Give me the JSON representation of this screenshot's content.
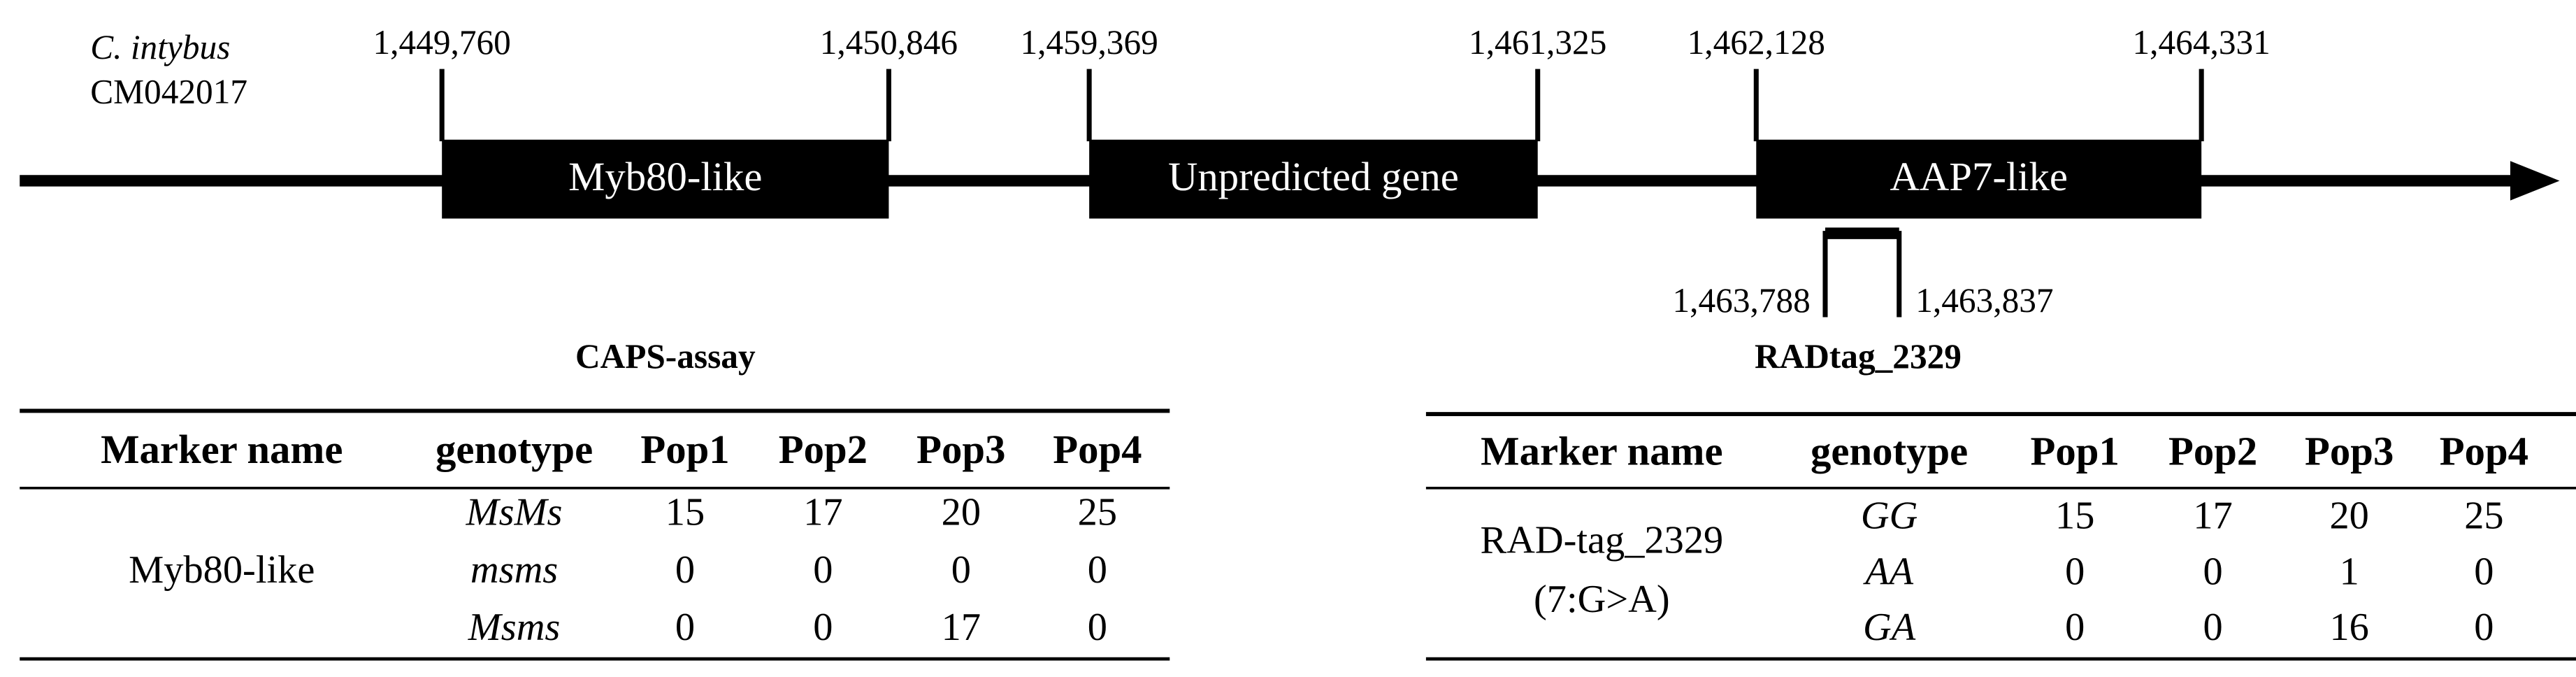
{
  "genome": {
    "species": "C. intybus",
    "accession": "CM042017"
  },
  "genes": [
    {
      "label": "Myb80-like",
      "start": "1,449,760",
      "end": "1,450,846"
    },
    {
      "label": "Unpredicted gene",
      "start": "1,459,369",
      "end": "1,461,325"
    },
    {
      "label": "AAP7-like",
      "start": "1,462,128",
      "end": "1,464,331"
    }
  ],
  "rad_tag": {
    "label": "RADtag_2329",
    "start": "1,463,788",
    "end": "1,463,837"
  },
  "tables": [
    {
      "title": "CAPS-assay",
      "header": [
        "Marker name",
        "genotype",
        "Pop1",
        "Pop2",
        "Pop3",
        "Pop4"
      ],
      "marker": [
        "Myb80-like"
      ],
      "rows": [
        [
          "MsMs",
          15,
          17,
          20,
          25
        ],
        [
          "msms",
          0,
          0,
          0,
          0
        ],
        [
          "Msms",
          0,
          0,
          17,
          0
        ]
      ]
    },
    {
      "header": [
        "Marker name",
        "genotype",
        "Pop1",
        "Pop2",
        "Pop3",
        "Pop4"
      ],
      "marker": [
        "RAD-tag_2329",
        "(7:G>A)"
      ],
      "rows": [
        [
          "GG",
          15,
          17,
          20,
          25
        ],
        [
          "AA",
          0,
          0,
          1,
          0
        ],
        [
          "GA",
          0,
          0,
          16,
          0
        ]
      ]
    }
  ]
}
